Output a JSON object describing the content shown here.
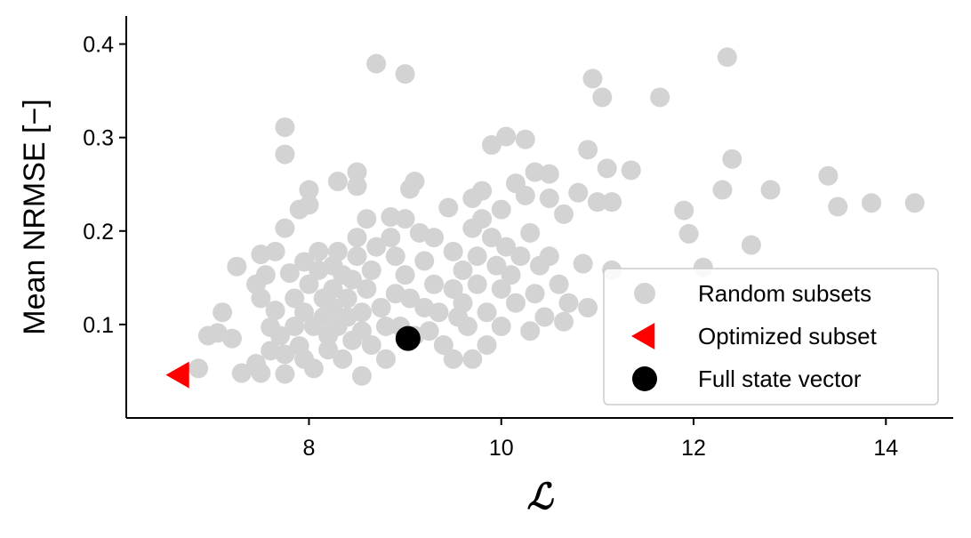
{
  "chart_data": {
    "type": "scatter",
    "xlabel": "ℒ",
    "ylabel": "Mean NRMSE [−]",
    "xlim": [
      6.1,
      14.7
    ],
    "ylim": [
      0.0,
      0.43
    ],
    "xticks": [
      8,
      10,
      12,
      14
    ],
    "xtick_labels": [
      "8",
      "10",
      "12",
      "14"
    ],
    "yticks": [
      0.1,
      0.2,
      0.3,
      0.4
    ],
    "ytick_labels": [
      "0.1",
      "0.2",
      "0.3",
      "0.4"
    ],
    "grid": false,
    "legend_position": "lower-right",
    "series": [
      {
        "name": "Random subsets",
        "color": "#d3d3d3",
        "marker": "circle",
        "points": [
          [
            6.85,
            0.053
          ],
          [
            6.95,
            0.088
          ],
          [
            7.05,
            0.091
          ],
          [
            7.1,
            0.113
          ],
          [
            7.2,
            0.085
          ],
          [
            7.25,
            0.162
          ],
          [
            7.3,
            0.048
          ],
          [
            7.45,
            0.058
          ],
          [
            7.45,
            0.143
          ],
          [
            7.5,
            0.175
          ],
          [
            7.5,
            0.128
          ],
          [
            7.5,
            0.048
          ],
          [
            7.55,
            0.153
          ],
          [
            7.6,
            0.097
          ],
          [
            7.6,
            0.072
          ],
          [
            7.65,
            0.178
          ],
          [
            7.65,
            0.115
          ],
          [
            7.7,
            0.088
          ],
          [
            7.75,
            0.311
          ],
          [
            7.75,
            0.282
          ],
          [
            7.75,
            0.203
          ],
          [
            7.75,
            0.068
          ],
          [
            7.75,
            0.047
          ],
          [
            7.8,
            0.155
          ],
          [
            7.85,
            0.128
          ],
          [
            7.85,
            0.098
          ],
          [
            7.9,
            0.077
          ],
          [
            7.9,
            0.223
          ],
          [
            7.95,
            0.167
          ],
          [
            7.95,
            0.113
          ],
          [
            7.95,
            0.063
          ],
          [
            8.0,
            0.244
          ],
          [
            8.0,
            0.228
          ],
          [
            8.0,
            0.143
          ],
          [
            8.05,
            0.098
          ],
          [
            8.05,
            0.053
          ],
          [
            8.1,
            0.178
          ],
          [
            8.1,
            0.158
          ],
          [
            8.15,
            0.128
          ],
          [
            8.15,
            0.108
          ],
          [
            8.2,
            0.088
          ],
          [
            8.2,
            0.073
          ],
          [
            8.25,
            0.163
          ],
          [
            8.25,
            0.138
          ],
          [
            8.25,
            0.118
          ],
          [
            8.3,
            0.253
          ],
          [
            8.3,
            0.178
          ],
          [
            8.3,
            0.098
          ],
          [
            8.35,
            0.063
          ],
          [
            8.35,
            0.153
          ],
          [
            8.4,
            0.128
          ],
          [
            8.4,
            0.108
          ],
          [
            8.45,
            0.148
          ],
          [
            8.45,
            0.083
          ],
          [
            8.5,
            0.263
          ],
          [
            8.5,
            0.248
          ],
          [
            8.5,
            0.193
          ],
          [
            8.5,
            0.173
          ],
          [
            8.55,
            0.113
          ],
          [
            8.55,
            0.093
          ],
          [
            8.55,
            0.045
          ],
          [
            8.6,
            0.213
          ],
          [
            8.6,
            0.138
          ],
          [
            8.65,
            0.158
          ],
          [
            8.65,
            0.078
          ],
          [
            8.7,
            0.379
          ],
          [
            8.7,
            0.183
          ],
          [
            8.75,
            0.118
          ],
          [
            8.8,
            0.098
          ],
          [
            8.8,
            0.063
          ],
          [
            8.85,
            0.215
          ],
          [
            8.85,
            0.193
          ],
          [
            8.9,
            0.173
          ],
          [
            8.9,
            0.133
          ],
          [
            8.95,
            0.098
          ],
          [
            9.0,
            0.368
          ],
          [
            9.0,
            0.213
          ],
          [
            9.0,
            0.153
          ],
          [
            9.05,
            0.128
          ],
          [
            9.05,
            0.245
          ],
          [
            9.1,
            0.253
          ],
          [
            9.1,
            0.088
          ],
          [
            9.15,
            0.198
          ],
          [
            9.2,
            0.168
          ],
          [
            9.2,
            0.118
          ],
          [
            9.25,
            0.093
          ],
          [
            9.3,
            0.193
          ],
          [
            9.3,
            0.143
          ],
          [
            9.35,
            0.113
          ],
          [
            9.4,
            0.078
          ],
          [
            9.45,
            0.225
          ],
          [
            9.5,
            0.178
          ],
          [
            9.5,
            0.138
          ],
          [
            9.5,
            0.063
          ],
          [
            9.55,
            0.108
          ],
          [
            9.6,
            0.158
          ],
          [
            9.6,
            0.123
          ],
          [
            9.65,
            0.098
          ],
          [
            9.7,
            0.235
          ],
          [
            9.7,
            0.203
          ],
          [
            9.7,
            0.063
          ],
          [
            9.75,
            0.173
          ],
          [
            9.75,
            0.143
          ],
          [
            9.8,
            0.243
          ],
          [
            9.8,
            0.213
          ],
          [
            9.85,
            0.113
          ],
          [
            9.85,
            0.078
          ],
          [
            9.9,
            0.292
          ],
          [
            9.9,
            0.193
          ],
          [
            9.95,
            0.163
          ],
          [
            10.0,
            0.223
          ],
          [
            10.0,
            0.138
          ],
          [
            10.0,
            0.098
          ],
          [
            10.05,
            0.301
          ],
          [
            10.05,
            0.183
          ],
          [
            10.1,
            0.153
          ],
          [
            10.15,
            0.251
          ],
          [
            10.15,
            0.123
          ],
          [
            10.2,
            0.173
          ],
          [
            10.25,
            0.298
          ],
          [
            10.25,
            0.238
          ],
          [
            10.3,
            0.198
          ],
          [
            10.3,
            0.093
          ],
          [
            10.35,
            0.263
          ],
          [
            10.35,
            0.133
          ],
          [
            10.4,
            0.163
          ],
          [
            10.45,
            0.108
          ],
          [
            10.5,
            0.261
          ],
          [
            10.5,
            0.235
          ],
          [
            10.5,
            0.173
          ],
          [
            10.6,
            0.143
          ],
          [
            10.65,
            0.218
          ],
          [
            10.65,
            0.103
          ],
          [
            10.7,
            0.123
          ],
          [
            10.8,
            0.241
          ],
          [
            10.85,
            0.165
          ],
          [
            10.9,
            0.287
          ],
          [
            10.9,
            0.118
          ],
          [
            10.95,
            0.363
          ],
          [
            11.0,
            0.231
          ],
          [
            11.05,
            0.343
          ],
          [
            11.1,
            0.267
          ],
          [
            11.15,
            0.231
          ],
          [
            11.15,
            0.158
          ],
          [
            11.35,
            0.265
          ],
          [
            11.65,
            0.343
          ],
          [
            11.9,
            0.222
          ],
          [
            11.95,
            0.197
          ],
          [
            12.1,
            0.161
          ],
          [
            12.3,
            0.244
          ],
          [
            12.35,
            0.386
          ],
          [
            12.4,
            0.277
          ],
          [
            12.6,
            0.185
          ],
          [
            12.8,
            0.244
          ],
          [
            13.4,
            0.259
          ],
          [
            13.5,
            0.226
          ],
          [
            13.85,
            0.23
          ],
          [
            14.3,
            0.23
          ]
        ]
      },
      {
        "name": "Optimized subset",
        "color": "#ff0000",
        "marker": "triangle-left",
        "points": [
          [
            6.65,
            0.046
          ]
        ]
      },
      {
        "name": "Full state vector",
        "color": "#000000",
        "marker": "circle",
        "points": [
          [
            9.03,
            0.085
          ]
        ]
      }
    ]
  }
}
